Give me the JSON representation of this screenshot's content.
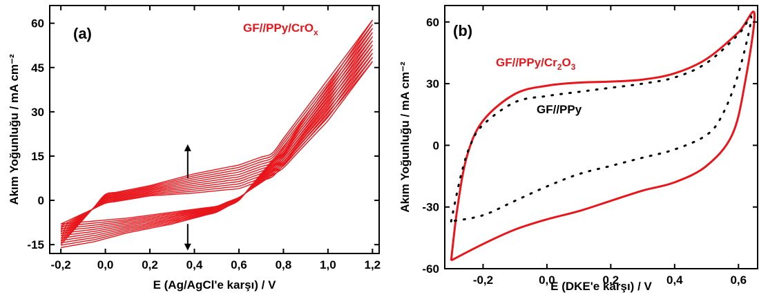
{
  "chart_data": [
    {
      "panel_label": "(a)",
      "type": "line",
      "xlabel": "E (Ag/AgCl'e karşı) / V",
      "ylabel": "Akım Yoğunluğu / mA cm⁻²",
      "xlim": [
        -0.25,
        1.23
      ],
      "ylim": [
        -18,
        66
      ],
      "x_ticks": [
        "-0,2",
        "0,0",
        "0,2",
        "0,4",
        "0,6",
        "0,8",
        "1,0",
        "1,2"
      ],
      "x_tick_values": [
        -0.2,
        0.0,
        0.2,
        0.4,
        0.6,
        0.8,
        1.0,
        1.2
      ],
      "y_ticks": [
        "-15",
        "0",
        "15",
        "30",
        "45",
        "60"
      ],
      "y_tick_values": [
        -15,
        0,
        15,
        30,
        45,
        60
      ],
      "grid": false,
      "color": "#e8161b",
      "series_label": {
        "text": "GF//PPy/CrO",
        "sub": "x"
      },
      "cycles": 11,
      "cycle_trend": "increasing current with cycle number (arrows up/down)",
      "series": [
        {
          "anodic": [
            [
              -0.2,
              -8
            ],
            [
              0.0,
              -1
            ],
            [
              0.2,
              1.5
            ],
            [
              0.4,
              2.5
            ],
            [
              0.6,
              4
            ],
            [
              0.75,
              8
            ],
            [
              0.9,
              20
            ],
            [
              1.05,
              33
            ],
            [
              1.2,
              47
            ]
          ],
          "cathodic": [
            [
              1.2,
              47
            ],
            [
              1.0,
              27
            ],
            [
              0.8,
              11
            ],
            [
              0.6,
              1
            ],
            [
              0.5,
              -2
            ],
            [
              0.3,
              -4
            ],
            [
              0.1,
              -6
            ],
            [
              -0.05,
              -7
            ],
            [
              -0.2,
              -8
            ]
          ]
        },
        {
          "anodic": [
            [
              -0.2,
              -15
            ],
            [
              0.0,
              2
            ],
            [
              0.2,
              5
            ],
            [
              0.4,
              9
            ],
            [
              0.6,
              12
            ],
            [
              0.75,
              16
            ],
            [
              0.9,
              31
            ],
            [
              1.05,
              46
            ],
            [
              1.2,
              61
            ]
          ],
          "cathodic": [
            [
              1.2,
              61
            ],
            [
              1.0,
              39
            ],
            [
              0.8,
              18
            ],
            [
              0.6,
              0
            ],
            [
              0.5,
              -4
            ],
            [
              0.3,
              -8
            ],
            [
              0.1,
              -11
            ],
            [
              -0.05,
              -14
            ],
            [
              -0.2,
              -16
            ]
          ]
        }
      ],
      "arrows": [
        {
          "x": 0.37,
          "from": 7.5,
          "to": 19,
          "dir": "up"
        },
        {
          "x": 0.37,
          "from": -8,
          "to": -17,
          "dir": "down"
        }
      ]
    },
    {
      "panel_label": "(b)",
      "type": "line",
      "xlabel": "E (DKE'e karşı) / V",
      "ylabel": "Akım Yoğunluğu / mA cm⁻²",
      "xlim": [
        -0.32,
        0.66
      ],
      "ylim": [
        -60,
        68
      ],
      "x_ticks": [
        "-0,2",
        "0,0",
        "0,2",
        "0,4",
        "0,6"
      ],
      "x_tick_values": [
        -0.2,
        0.0,
        0.2,
        0.4,
        0.6
      ],
      "y_ticks": [
        "-60",
        "-30",
        "0",
        "30",
        "60"
      ],
      "y_tick_values": [
        -60,
        -30,
        0,
        30,
        60
      ],
      "grid": false,
      "series": [
        {
          "label": {
            "text": "GF//PPy/Cr",
            "sub1": "2",
            "mid": "O",
            "sub2": "3"
          },
          "color": "#e8161b",
          "style": "solid",
          "points": [
            [
              -0.3,
              -56
            ],
            [
              -0.28,
              -30
            ],
            [
              -0.25,
              -5
            ],
            [
              -0.2,
              12
            ],
            [
              -0.1,
              25
            ],
            [
              0.0,
              29
            ],
            [
              0.1,
              30.5
            ],
            [
              0.2,
              31
            ],
            [
              0.3,
              32
            ],
            [
              0.4,
              35
            ],
            [
              0.5,
              42
            ],
            [
              0.6,
              55
            ],
            [
              0.65,
              64
            ],
            [
              0.62,
              30
            ],
            [
              0.58,
              5
            ],
            [
              0.5,
              -10
            ],
            [
              0.4,
              -18
            ],
            [
              0.3,
              -22
            ],
            [
              0.2,
              -27
            ],
            [
              0.1,
              -32
            ],
            [
              0.0,
              -36
            ],
            [
              -0.1,
              -41
            ],
            [
              -0.2,
              -48
            ],
            [
              -0.3,
              -56
            ]
          ]
        },
        {
          "label": {
            "text": "GF//PPy"
          },
          "color": "#000000",
          "style": "dotted",
          "points": [
            [
              -0.3,
              -37
            ],
            [
              -0.27,
              -15
            ],
            [
              -0.24,
              0
            ],
            [
              -0.2,
              10
            ],
            [
              -0.1,
              21
            ],
            [
              0.0,
              24
            ],
            [
              0.1,
              26
            ],
            [
              0.2,
              28
            ],
            [
              0.3,
              30
            ],
            [
              0.4,
              33
            ],
            [
              0.5,
              40
            ],
            [
              0.6,
              54
            ],
            [
              0.64,
              62
            ],
            [
              0.6,
              35
            ],
            [
              0.55,
              15
            ],
            [
              0.5,
              5
            ],
            [
              0.4,
              -2
            ],
            [
              0.3,
              -6
            ],
            [
              0.2,
              -10
            ],
            [
              0.1,
              -14
            ],
            [
              0.0,
              -20
            ],
            [
              -0.1,
              -27
            ],
            [
              -0.2,
              -34
            ],
            [
              -0.3,
              -37
            ]
          ]
        }
      ]
    }
  ]
}
